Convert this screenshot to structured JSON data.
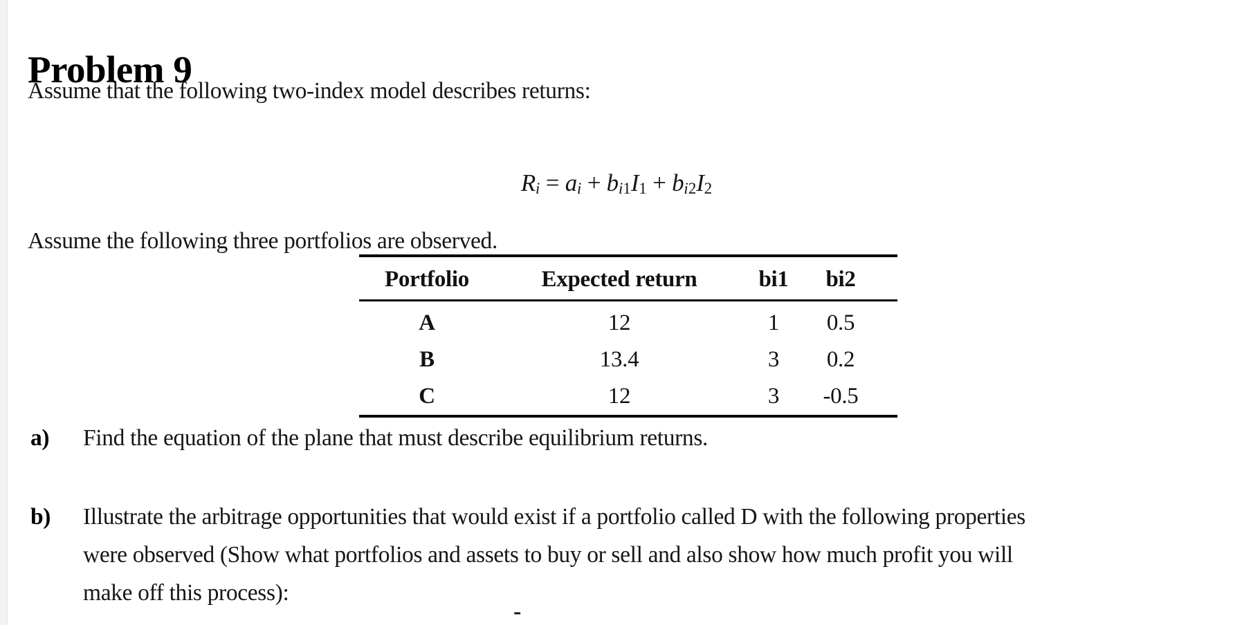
{
  "document": {
    "title": "Problem 9",
    "intro": "Assume that the following two-index model describes returns:",
    "observed_line": "Assume the following three portfolios are observed.",
    "formula": {
      "parts": [
        {
          "base": "R",
          "sub_it": "i"
        },
        {
          "op": " = "
        },
        {
          "base": "a",
          "sub_it": "i"
        },
        {
          "op": " + "
        },
        {
          "base": "b",
          "sub_it": "i",
          "sub_num": "1"
        },
        {
          "base": "I",
          "sub_num": "1"
        },
        {
          "op": " + "
        },
        {
          "base": "b",
          "sub_it": "i",
          "sub_num": "2"
        },
        {
          "base": "I",
          "sub_num": "2"
        }
      ]
    },
    "table": {
      "headers": [
        "Portfolio",
        "Expected return",
        "bi1",
        "bi2"
      ],
      "rows": [
        {
          "portfolio": "A",
          "expected_return": "12",
          "bi1": "1",
          "bi2": "0.5"
        },
        {
          "portfolio": "B",
          "expected_return": "13.4",
          "bi1": "3",
          "bi2": "0.2"
        },
        {
          "portfolio": "C",
          "expected_return": "12",
          "bi1": "3",
          "bi2": "-0.5"
        }
      ]
    },
    "questions": {
      "a": {
        "label": "a)",
        "text": "Find the equation of the plane that must describe equilibrium returns."
      },
      "b": {
        "label": "b)",
        "lines": [
          "Illustrate the arbitrage opportunities that would exist if a portfolio called D with the following properties",
          "were observed (Show what portfolios and assets to buy or sell and also show how much profit you will",
          "make off this process):"
        ]
      }
    },
    "list_dash": "-"
  }
}
